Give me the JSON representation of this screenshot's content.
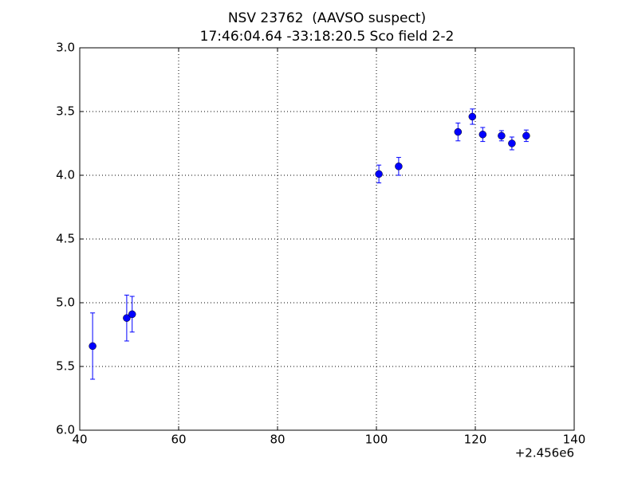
{
  "chart_data": {
    "type": "errorbar",
    "title": [
      "NSV 23762  (AAVSO suspect)",
      "17:46:04.64 -33:18:20.5 Sco field 2-2"
    ],
    "x_offset_label": "+2.456e6",
    "x": [
      42.6,
      49.5,
      50.6,
      100.5,
      104.5,
      116.5,
      119.4,
      121.5,
      125.3,
      127.4,
      130.3
    ],
    "values": [
      5.34,
      5.12,
      5.09,
      3.99,
      3.93,
      3.66,
      3.54,
      3.68,
      3.69,
      3.75,
      3.69
    ],
    "errors": [
      0.26,
      0.18,
      0.14,
      0.07,
      0.07,
      0.07,
      0.06,
      0.055,
      0.04,
      0.05,
      0.045
    ],
    "color": "#0000ff",
    "xlim": [
      40,
      140
    ],
    "xticks": [
      40,
      60,
      80,
      100,
      120,
      140
    ],
    "ylim": [
      6,
      3
    ],
    "yticks": [
      {
        "value": 3,
        "label": "3.0"
      },
      3.5,
      {
        "value": 4,
        "label": "4.0"
      },
      4.5,
      {
        "value": 5,
        "label": "5.0"
      },
      5.5,
      {
        "value": 6,
        "label": "6.0"
      }
    ],
    "grid": true
  }
}
